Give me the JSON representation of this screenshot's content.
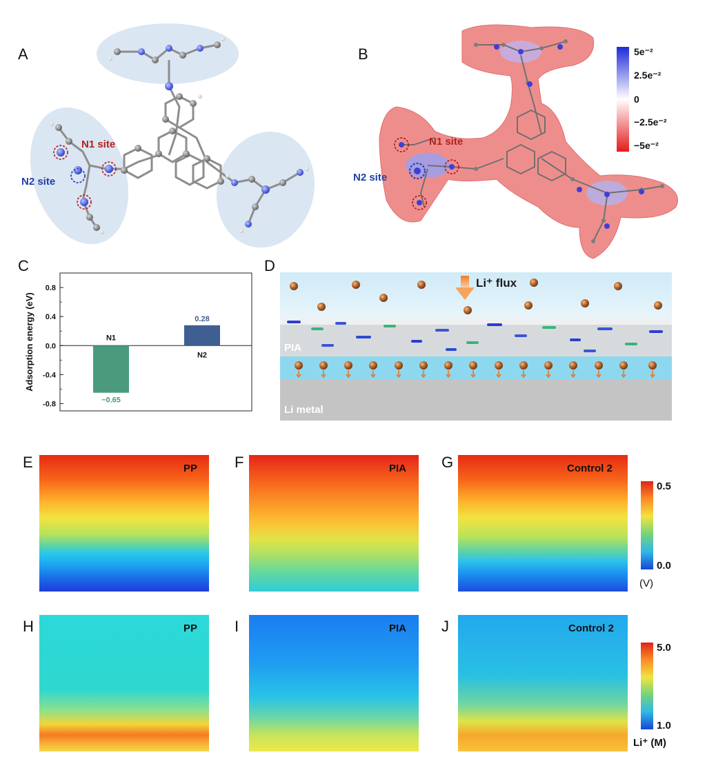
{
  "panels": {
    "A": "A",
    "B": "B",
    "C": "C",
    "D": "D",
    "E": "E",
    "F": "F",
    "G": "G",
    "H": "H",
    "I": "I",
    "J": "J"
  },
  "panel_a": {
    "n1_label": "N1 site",
    "n2_label": "N2 site"
  },
  "panel_b": {
    "n1_label": "N1 site",
    "n2_label": "N2 site",
    "colorbar_ticks": [
      "5e⁻²",
      "2.5e⁻²",
      "0",
      "−2.5e⁻²",
      "−5e⁻²"
    ]
  },
  "chart_data": {
    "type": "bar",
    "categories": [
      "N1",
      "N2"
    ],
    "values": [
      -0.65,
      0.28
    ],
    "value_labels": [
      "−0.65",
      "0.28"
    ],
    "bar_colors": [
      "#4a9a7e",
      "#3f5f93"
    ],
    "ylabel": "Adsorption energy (eV)",
    "ylim": [
      -0.9,
      1.0
    ],
    "yticks": [
      -0.8,
      -0.4,
      0.0,
      0.4,
      0.8
    ],
    "ytick_labels": [
      "-0.8",
      "-0.4",
      "0.0",
      "0.4",
      "0.8"
    ]
  },
  "panel_d": {
    "flux_label": "Li⁺ flux",
    "layer_label": "PIA",
    "metal_label": "Li metal"
  },
  "potential_maps": {
    "labels": [
      "PP",
      "PIA",
      "Control 2"
    ],
    "colorbar_max": "0.5",
    "colorbar_min": "0.0",
    "unit": "(V)"
  },
  "concentration_maps": {
    "labels": [
      "PP",
      "PIA",
      "Control 2"
    ],
    "colorbar_max": "5.0",
    "colorbar_min": "1.0",
    "unit": "Li⁺ (M)"
  }
}
